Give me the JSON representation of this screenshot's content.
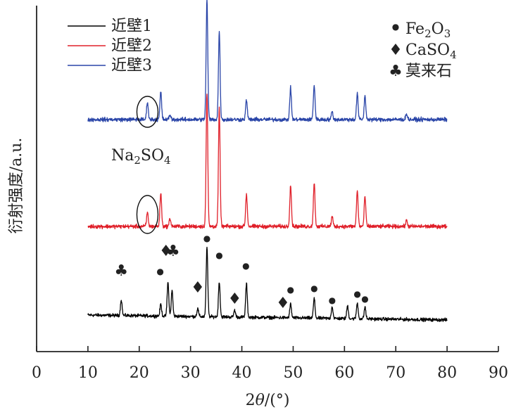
{
  "chart_data": {
    "type": "line",
    "xlabel": "2θ/(°)",
    "ylabel": "衍射强度/a.u.",
    "xlim": [
      0,
      90
    ],
    "x_ticks": [
      "0",
      "10",
      "20",
      "30",
      "40",
      "50",
      "60",
      "70",
      "80",
      "90"
    ],
    "y_ticks_shown": false,
    "grid": false,
    "legend_position": "top-left",
    "x_range": [
      10,
      80
    ],
    "series": [
      {
        "name": "近壁1",
        "color": "#000000",
        "baseline": 0.5,
        "baseline_end": 0.0,
        "noise": 0.25,
        "peaks": [
          {
            "x": 16.5,
            "h": 1.6
          },
          {
            "x": 24.2,
            "h": 1.2
          },
          {
            "x": 25.6,
            "h": 3.4
          },
          {
            "x": 26.4,
            "h": 2.6
          },
          {
            "x": 31.4,
            "h": 0.8
          },
          {
            "x": 33.2,
            "h": 7.0
          },
          {
            "x": 35.6,
            "h": 3.6
          },
          {
            "x": 38.6,
            "h": 0.7
          },
          {
            "x": 40.9,
            "h": 3.4
          },
          {
            "x": 49.5,
            "h": 1.4
          },
          {
            "x": 54.1,
            "h": 2.0
          },
          {
            "x": 57.6,
            "h": 1.2
          },
          {
            "x": 60.6,
            "h": 1.3
          },
          {
            "x": 62.5,
            "h": 1.6
          },
          {
            "x": 64.0,
            "h": 1.2
          }
        ]
      },
      {
        "name": "近壁2",
        "color": "#e0202a",
        "baseline": 0.0,
        "baseline_end": 0.0,
        "noise": 0.3,
        "peaks": [
          {
            "x": 21.6,
            "h": 1.4
          },
          {
            "x": 24.2,
            "h": 3.4
          },
          {
            "x": 26.0,
            "h": 0.8
          },
          {
            "x": 33.2,
            "h": 13.5
          },
          {
            "x": 35.6,
            "h": 12.0
          },
          {
            "x": 40.9,
            "h": 3.3
          },
          {
            "x": 49.5,
            "h": 4.2
          },
          {
            "x": 54.1,
            "h": 4.4
          },
          {
            "x": 57.6,
            "h": 1.0
          },
          {
            "x": 62.5,
            "h": 3.6
          },
          {
            "x": 64.0,
            "h": 3.0
          },
          {
            "x": 72.1,
            "h": 0.6
          }
        ]
      },
      {
        "name": "近壁3",
        "color": "#2a45a8",
        "baseline": 0.0,
        "baseline_end": 0.0,
        "noise": 0.3,
        "peaks": [
          {
            "x": 21.6,
            "h": 1.8
          },
          {
            "x": 24.2,
            "h": 2.8
          },
          {
            "x": 26.0,
            "h": 0.5
          },
          {
            "x": 33.2,
            "h": 12.2
          },
          {
            "x": 35.6,
            "h": 9.0
          },
          {
            "x": 40.9,
            "h": 2.0
          },
          {
            "x": 49.5,
            "h": 3.2
          },
          {
            "x": 54.1,
            "h": 3.5
          },
          {
            "x": 57.6,
            "h": 0.8
          },
          {
            "x": 62.5,
            "h": 2.6
          },
          {
            "x": 64.0,
            "h": 2.4
          },
          {
            "x": 72.1,
            "h": 0.6
          }
        ]
      }
    ],
    "phase_legend": [
      {
        "marker": "●",
        "label": "Fe",
        "sub1": "2",
        "mid": "O",
        "sub2": "3"
      },
      {
        "marker": "♦",
        "label": "CaSO",
        "sub1": "4",
        "mid": "",
        "sub2": ""
      },
      {
        "marker": "♣",
        "label": "莫来石",
        "sub1": "",
        "mid": "",
        "sub2": ""
      }
    ],
    "annotation": {
      "label": "Na",
      "sub1": "2",
      "mid": "SO",
      "sub2": "4"
    },
    "markers": [
      {
        "symbol": "♣",
        "x": 16.5
      },
      {
        "symbol": "●",
        "x": 24.1
      },
      {
        "symbol": "♦",
        "x": 25.2
      },
      {
        "symbol": "♣",
        "x": 26.6
      },
      {
        "symbol": "♦",
        "x": 31.4
      },
      {
        "symbol": "●",
        "x": 33.2
      },
      {
        "symbol": "●",
        "x": 35.6
      },
      {
        "symbol": "♦",
        "x": 38.6
      },
      {
        "symbol": "●",
        "x": 40.8
      },
      {
        "symbol": "♦",
        "x": 48.0
      },
      {
        "symbol": "●",
        "x": 49.5
      },
      {
        "symbol": "●",
        "x": 54.1
      },
      {
        "symbol": "●",
        "x": 57.6
      },
      {
        "symbol": "●",
        "x": 62.5
      },
      {
        "symbol": "●",
        "x": 64.0
      }
    ]
  }
}
